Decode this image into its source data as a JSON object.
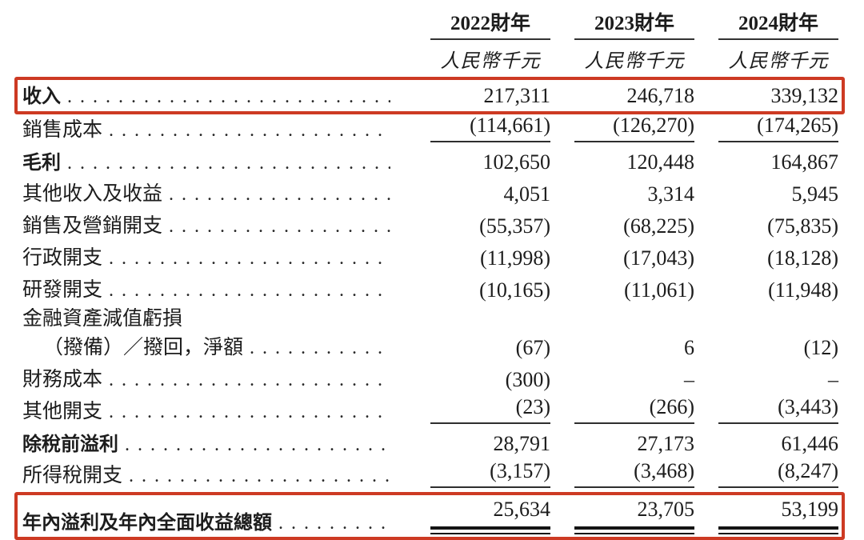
{
  "accent_color": "#cd3a23",
  "unit_label": "人民幣千元",
  "columns": [
    {
      "year": "2022財年"
    },
    {
      "year": "2023財年"
    },
    {
      "year": "2024財年"
    }
  ],
  "rows": [
    {
      "label": "收入",
      "bold": true,
      "boxed": true,
      "values": [
        "217,311",
        "246,718",
        "339,132"
      ]
    },
    {
      "label": "銷售成本",
      "underline": true,
      "values": [
        "(114,661)",
        "(126,270)",
        "(174,265)"
      ]
    },
    {
      "label": "毛利",
      "bold": true,
      "values": [
        "102,650",
        "120,448",
        "164,867"
      ]
    },
    {
      "label": "其他收入及收益",
      "values": [
        "4,051",
        "3,314",
        "5,945"
      ]
    },
    {
      "label": "銷售及營銷開支",
      "values": [
        "(55,357)",
        "(68,225)",
        "(75,835)"
      ]
    },
    {
      "label": "行政開支",
      "values": [
        "(11,998)",
        "(17,043)",
        "(18,128)"
      ]
    },
    {
      "label": "研發開支",
      "values": [
        "(10,165)",
        "(11,061)",
        "(11,948)"
      ]
    },
    {
      "label": "金融資產減值虧損",
      "dots": false,
      "tight": true
    },
    {
      "label": "（撥備）／撥回，淨額",
      "indent": true,
      "tight": true,
      "values": [
        "(67)",
        "6",
        "(12)"
      ]
    },
    {
      "label": "財務成本",
      "values": [
        "(300)",
        "–",
        "–"
      ]
    },
    {
      "label": "其他開支",
      "underline": true,
      "values": [
        "(23)",
        "(266)",
        "(3,443)"
      ]
    },
    {
      "label": "除稅前溢利",
      "bold": true,
      "values": [
        "28,791",
        "27,173",
        "61,446"
      ]
    },
    {
      "label": "所得稅開支",
      "underline": true,
      "values": [
        "(3,157)",
        "(3,468)",
        "(8,247)"
      ]
    },
    {
      "label": "年內溢利及年內全面收益總額",
      "bold": true,
      "boxed": true,
      "double": true,
      "values": [
        "25,634",
        "23,705",
        "53,199"
      ]
    }
  ]
}
